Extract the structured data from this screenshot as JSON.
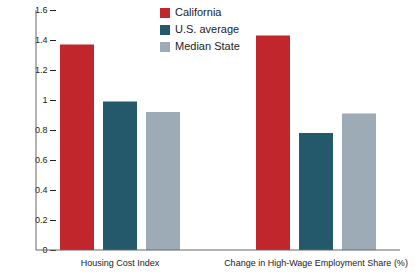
{
  "chart_data": {
    "type": "bar",
    "categories": [
      "Housing Cost Index",
      "Change in High-Wage Employment Share (%)"
    ],
    "series": [
      {
        "name": "California",
        "color": "#c0262c",
        "values": [
          1.37,
          1.43
        ]
      },
      {
        "name": "U.S. average",
        "color": "#24596b",
        "values": [
          0.99,
          0.78
        ]
      },
      {
        "name": "Median State",
        "color": "#9cabb5",
        "values": [
          0.92,
          0.91
        ]
      }
    ],
    "ylim": [
      0,
      1.6
    ],
    "yticks": [
      0,
      0.2,
      0.4,
      0.6,
      0.8,
      1,
      1.2,
      1.4,
      1.6
    ],
    "grid": false,
    "legend": "top"
  }
}
